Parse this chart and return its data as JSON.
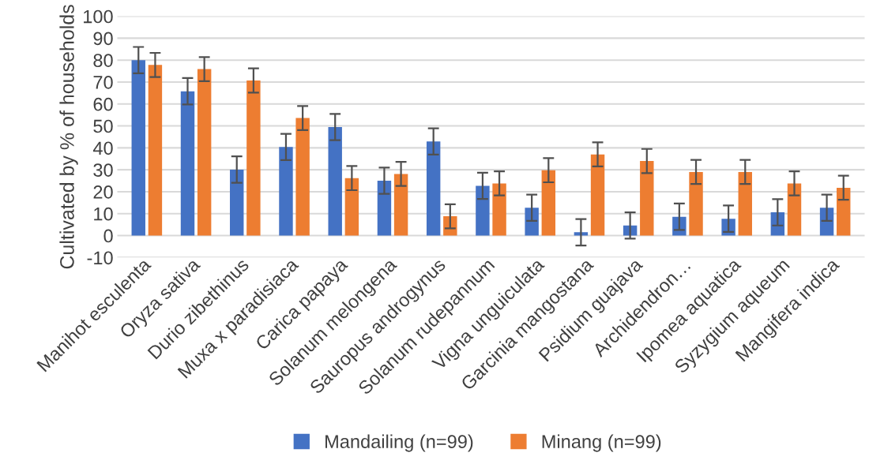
{
  "chart_data": {
    "type": "bar",
    "ylabel": "Cultivated by % of households",
    "categories": [
      "Manihot esculenta",
      "Oryza sativa",
      "Durio zibethinus",
      "Muxa x paradisiaca",
      "Carica papaya",
      "Solanum melongena",
      "Sauropus androgynus",
      "Solanum rudepannum",
      "Vigna unguiculata",
      "Garcinia mangostana",
      "Psidium guajava",
      "Archidendron…",
      "Ipomea aquatica",
      "Syzygium aqueum",
      "Mangifera indica"
    ],
    "series": [
      {
        "name": "Mandailing (n=99)",
        "color": "#4472c4",
        "values": [
          80,
          65.8,
          30.1,
          40.4,
          49.5,
          25,
          42.9,
          22.7,
          12.7,
          1.5,
          4.6,
          8.6,
          7.7,
          10.6,
          12.7
        ],
        "errors": [
          6,
          6,
          6,
          6,
          6,
          6,
          6,
          6,
          6,
          6,
          6,
          6,
          6,
          6,
          6
        ]
      },
      {
        "name": "Minang (n=99)",
        "color": "#ed7d31",
        "values": [
          77.8,
          75.9,
          70.7,
          53.6,
          26.2,
          28.1,
          8.8,
          23.8,
          29.8,
          37,
          34,
          29,
          29,
          23.8,
          21.8
        ],
        "errors": [
          5.5,
          5.5,
          5.5,
          5.5,
          5.5,
          5.5,
          5.5,
          5.5,
          5.5,
          5.5,
          5.5,
          5.5,
          5.5,
          5.5,
          5.5
        ]
      }
    ],
    "ylim": [
      -10,
      100
    ],
    "yticks": [
      -10,
      0,
      10,
      20,
      30,
      40,
      50,
      60,
      70,
      80,
      90,
      100
    ],
    "grid": "y",
    "legend": "bottom"
  }
}
